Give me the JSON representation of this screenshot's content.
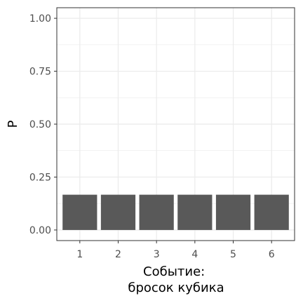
{
  "chart_data": {
    "type": "bar",
    "categories": [
      "1",
      "2",
      "3",
      "4",
      "5",
      "6"
    ],
    "values": [
      0.1667,
      0.1667,
      0.1667,
      0.1667,
      0.1667,
      0.1667
    ],
    "ylabel": "P",
    "xlabel_lines": [
      "Событие:",
      "бросок кубика"
    ],
    "ylim": [
      0,
      1.0
    ],
    "y_ticks": [
      0.0,
      0.25,
      0.5,
      0.75,
      1.0
    ],
    "y_tick_labels": [
      "0.00",
      "0.25",
      "0.50",
      "0.75",
      "1.00"
    ],
    "grid": true,
    "bar_color": "#595959",
    "grid_color": "#ebebeb",
    "panel_border_color": "#333333",
    "background": "#ffffff"
  }
}
